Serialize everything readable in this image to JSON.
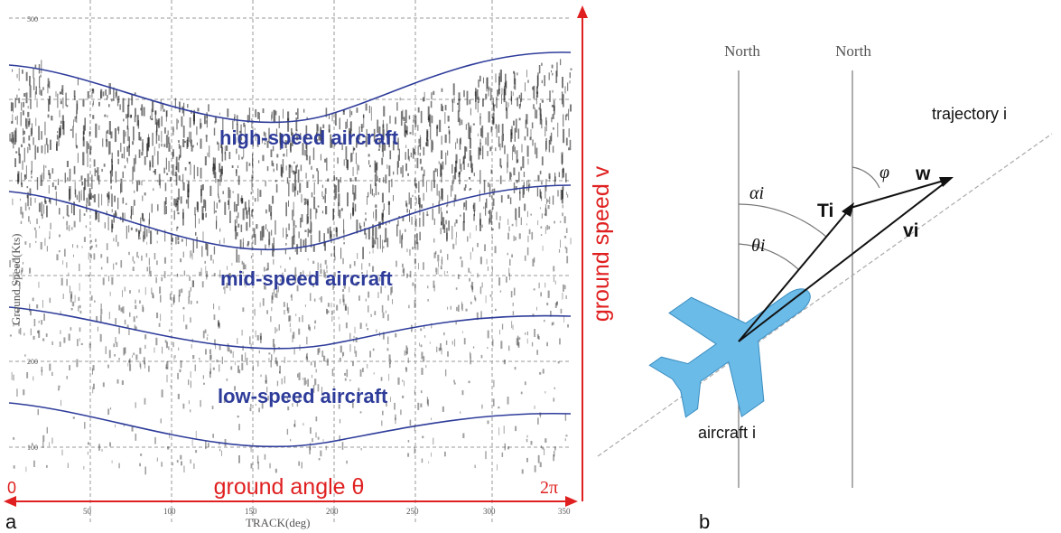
{
  "panel_a": {
    "letter": "a",
    "y_axis_label": "Ground Speed(Kts)",
    "y_ticks": [
      "500",
      "200",
      "100"
    ],
    "x_axis_label": "TRACK(deg)",
    "x_ticks": [
      "50",
      "100",
      "150",
      "200",
      "250",
      "300",
      "350"
    ],
    "bands": {
      "high": "high-speed aircraft",
      "mid": "mid-speed aircraft",
      "low": "low-speed aircraft"
    },
    "red_y_label": "ground speed v",
    "red_x_label": "ground angle θ",
    "red_x_start": "0",
    "red_x_end": "2π",
    "colors": {
      "bands": "#2e3c9a",
      "annotation": "#e02020",
      "dots": "#111111"
    }
  },
  "panel_b": {
    "letter": "b",
    "north_left": "North",
    "north_right": "North",
    "trajectory": "trajectory i",
    "aircraft": "aircraft i",
    "alpha": "αi",
    "theta": "θi",
    "phi": "φ",
    "T": "Ti",
    "v": "vi",
    "w": "w",
    "colors": {
      "aircraft": "#6bbbe8",
      "aircraft_outline": "#3a8dc0"
    }
  }
}
